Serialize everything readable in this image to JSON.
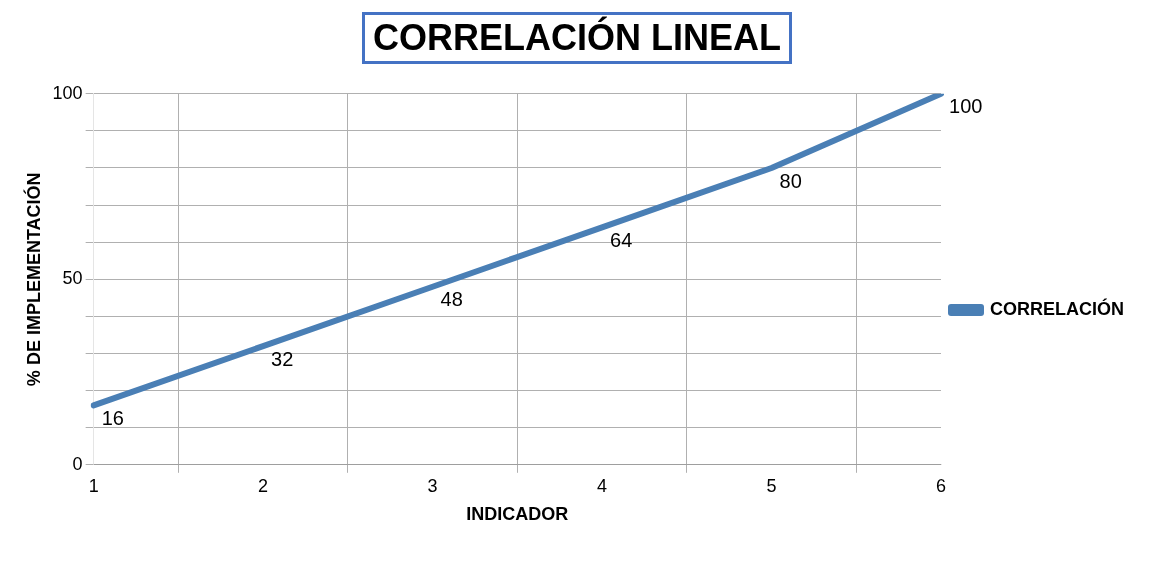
{
  "chart_data": {
    "type": "line",
    "title": "CORRELACIÓN LINEAL",
    "xlabel": "INDICADOR",
    "ylabel": "% DE IMPLEMENTACIÓN",
    "categories": [
      "1",
      "2",
      "3",
      "4",
      "5",
      "6"
    ],
    "series": [
      {
        "name": "CORRELACIÓN",
        "color": "#4a7fb5",
        "values": [
          16,
          32,
          48,
          64,
          80,
          100
        ]
      }
    ],
    "ylim": [
      0,
      100
    ],
    "yticks": [
      0,
      {
        "value": 10,
        "label": null
      },
      {
        "value": 20,
        "label": null
      },
      {
        "value": 30,
        "label": null
      },
      {
        "value": 40,
        "label": null
      },
      50,
      {
        "value": 60,
        "label": null
      },
      {
        "value": 70,
        "label": null
      },
      {
        "value": 80,
        "label": null
      },
      {
        "value": 90,
        "label": null
      },
      100
    ],
    "grid": true,
    "legend": "right",
    "marker": "none",
    "line_style": "solid",
    "data_labels": true
  }
}
